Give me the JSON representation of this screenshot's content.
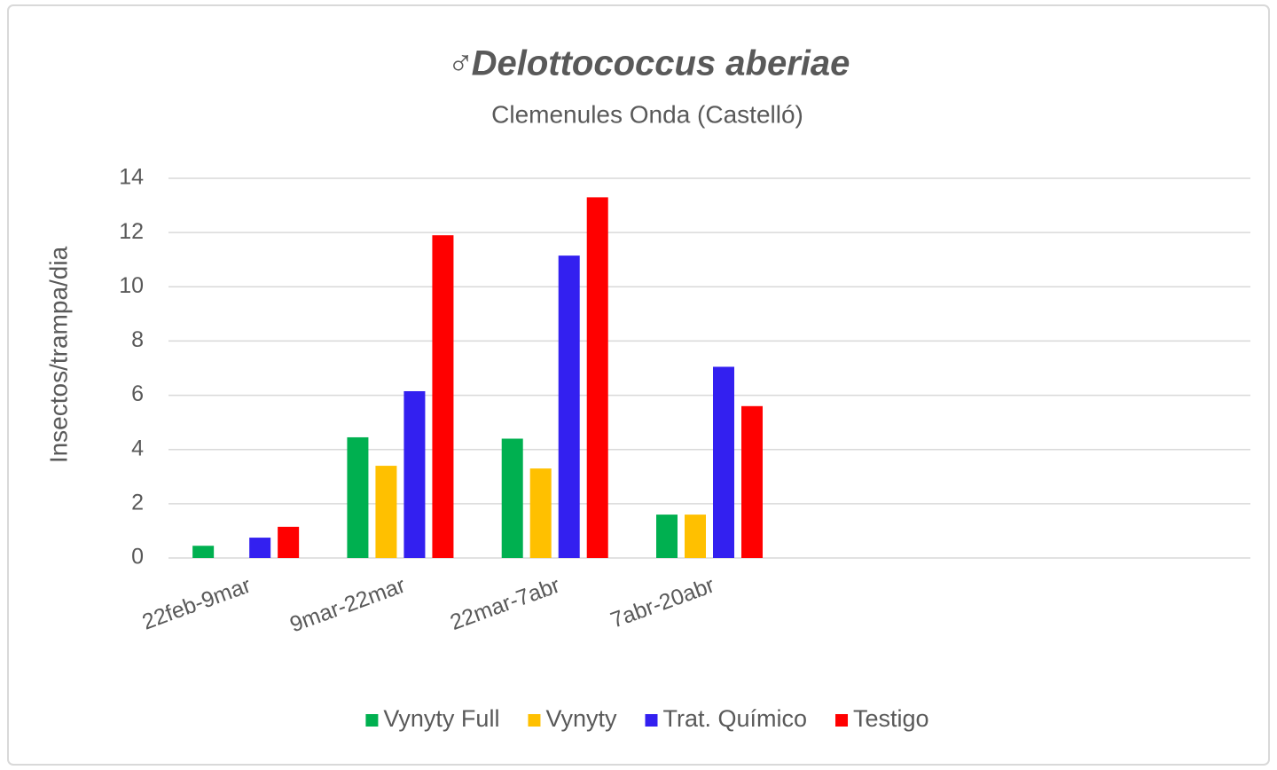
{
  "chart_data": {
    "type": "bar",
    "title": "♂Delottococcus aberiae",
    "subtitle": "Clemenules Onda (Castelló)",
    "y_label": "Insectos/trampa/dia",
    "categories": [
      "22feb-9mar",
      "9mar-22mar",
      "22mar-7abr",
      "7abr-20abr",
      null,
      null,
      null
    ],
    "series": [
      {
        "name": "Vynyty Full",
        "color": "#00b050",
        "values": [
          0.45,
          4.45,
          4.4,
          1.6,
          null,
          null,
          null
        ]
      },
      {
        "name": "Vynyty",
        "color": "#ffc000",
        "values": [
          0,
          3.4,
          3.3,
          1.6,
          null,
          null,
          null
        ]
      },
      {
        "name": "Trat. Químico",
        "color": "#3320f0",
        "values": [
          0.75,
          6.15,
          11.15,
          7.05,
          null,
          null,
          null
        ]
      },
      {
        "name": "Testigo",
        "color": "#ff0000",
        "values": [
          1.15,
          11.9,
          13.3,
          5.6,
          null,
          null,
          null
        ]
      }
    ],
    "ylim": [
      0,
      14
    ],
    "yticks": [
      0,
      2,
      4,
      6,
      8,
      10,
      12,
      14
    ],
    "grid": true,
    "legend": "bottom"
  }
}
